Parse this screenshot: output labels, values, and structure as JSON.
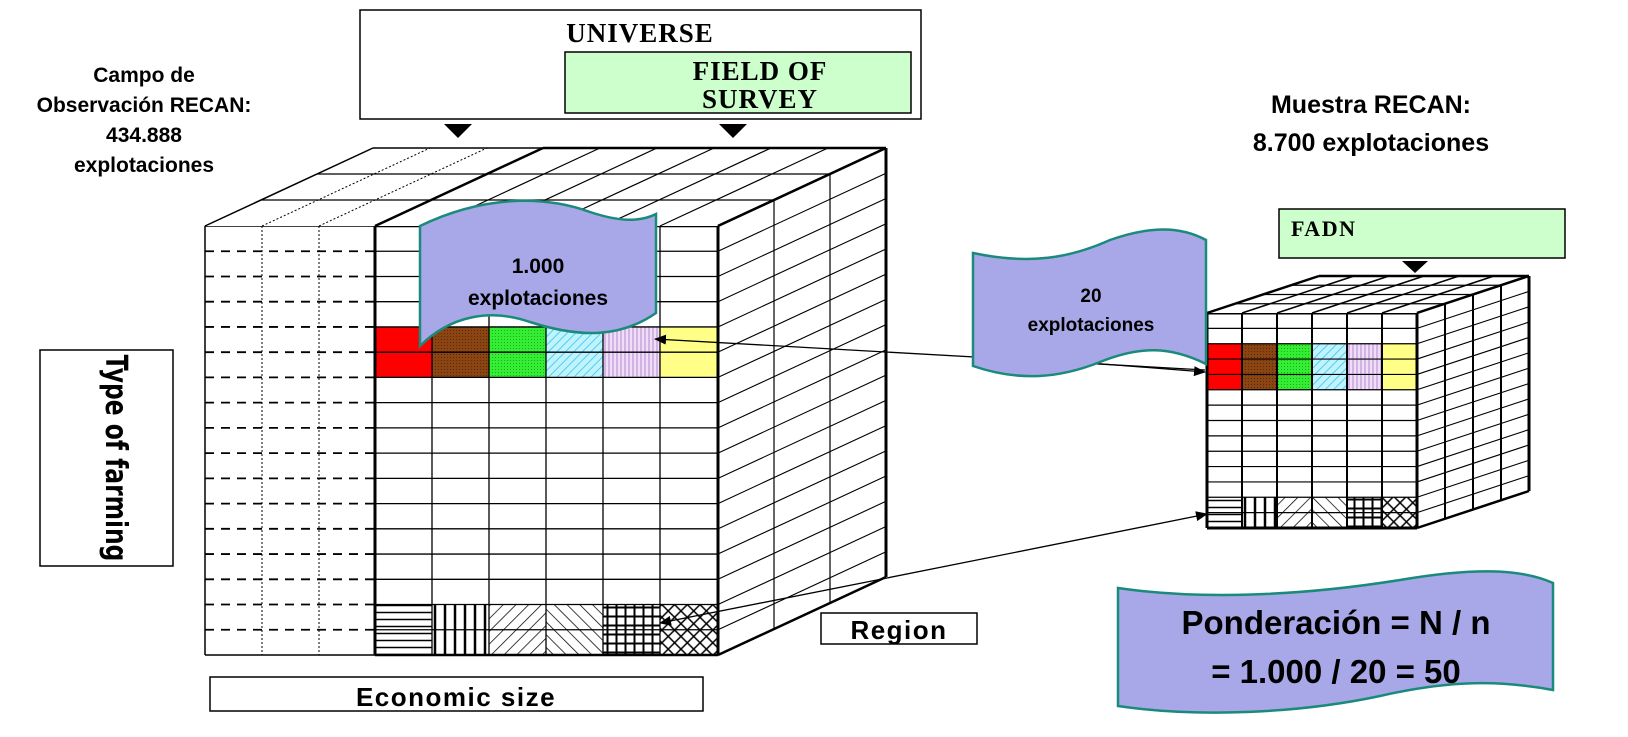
{
  "universe": {
    "label": "UNIVERSE"
  },
  "field_of_survey": {
    "line1": "FIELD OF",
    "line2": "SURVEY"
  },
  "campo": {
    "line1": "Campo de",
    "line2": "Observación RECAN:",
    "line3": "434.888",
    "line4": "explotaciones"
  },
  "muestra": {
    "line1": "Muestra RECAN:",
    "line2": "8.700 explotaciones"
  },
  "fadn": {
    "label": "FADN"
  },
  "flag_1000": {
    "line1": "1.000",
    "line2": "explotaciones"
  },
  "flag_20": {
    "line1": "20",
    "line2": "explotaciones"
  },
  "type_of_farming": {
    "label": "Type of farming"
  },
  "economic_size": {
    "label": "Economic size"
  },
  "region": {
    "label": "Region"
  },
  "ponderacion": {
    "line1": "Ponderación = N / n",
    "line2": "= 1.000 / 20 = 50"
  },
  "colors": {
    "cell_colors": [
      "#ff0000",
      "#8b4513",
      "#33ee33",
      "#99eeff",
      "#ddaaee",
      "#ffff88"
    ],
    "banner_fill": "#ccffcc",
    "flag_fill": "#a8a8e8",
    "flag_border": "#1a8a7a"
  }
}
